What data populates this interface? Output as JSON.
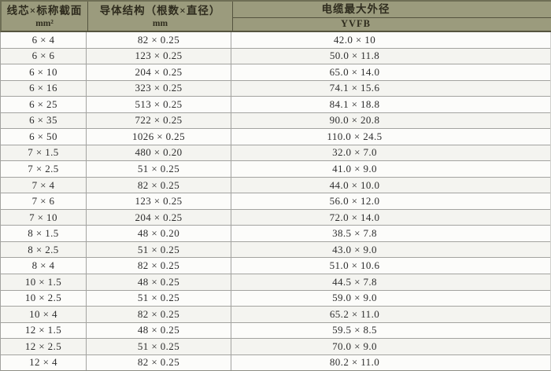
{
  "colors": {
    "header_bg": "#9b9b7d",
    "header_edge": "#6e6e55",
    "header_line": "#55543f",
    "header_text": "#2f2c1e",
    "body_bg": "#f9f9f6",
    "grid_line": "#a3a3a0",
    "cell_text": "#2d2d2d"
  },
  "table": {
    "header": {
      "col1": {
        "title": "线芯×标称截面",
        "unit": "mm²"
      },
      "col2": {
        "title": "导体结构（根数×直径）",
        "unit": "mm"
      },
      "col3": {
        "title": "电缆最大外径",
        "subtitle": "YVFB"
      }
    },
    "rows": [
      {
        "cores": "6 × 4",
        "conductor": "82 × 0.25",
        "od": "42.0 × 10"
      },
      {
        "cores": "6 × 6",
        "conductor": "123 × 0.25",
        "od": "50.0 × 11.8"
      },
      {
        "cores": "6 × 10",
        "conductor": "204 × 0.25",
        "od": "65.0 × 14.0"
      },
      {
        "cores": "6 × 16",
        "conductor": "323 × 0.25",
        "od": "74.1 × 15.6"
      },
      {
        "cores": "6 × 25",
        "conductor": "513 × 0.25",
        "od": "84.1 × 18.8"
      },
      {
        "cores": "6 × 35",
        "conductor": "722 × 0.25",
        "od": "90.0 × 20.8"
      },
      {
        "cores": "6 × 50",
        "conductor": "1026 × 0.25",
        "od": "110.0 × 24.5"
      },
      {
        "cores": "7 × 1.5",
        "conductor": "480 × 0.20",
        "od": "32.0 × 7.0"
      },
      {
        "cores": "7 × 2.5",
        "conductor": "51 × 0.25",
        "od": "41.0 × 9.0"
      },
      {
        "cores": "7 × 4",
        "conductor": "82 × 0.25",
        "od": "44.0 × 10.0"
      },
      {
        "cores": "7 × 6",
        "conductor": "123 × 0.25",
        "od": "56.0 × 12.0"
      },
      {
        "cores": "7 × 10",
        "conductor": "204 × 0.25",
        "od": "72.0 × 14.0"
      },
      {
        "cores": "8 × 1.5",
        "conductor": "48 × 0.20",
        "od": "38.5 × 7.8"
      },
      {
        "cores": "8 × 2.5",
        "conductor": "51 × 0.25",
        "od": "43.0 × 9.0"
      },
      {
        "cores": "8 × 4",
        "conductor": "82 × 0.25",
        "od": "51.0 × 10.6"
      },
      {
        "cores": "10 × 1.5",
        "conductor": "48 × 0.25",
        "od": "44.5 × 7.8"
      },
      {
        "cores": "10 × 2.5",
        "conductor": "51 × 0.25",
        "od": "59.0 × 9.0"
      },
      {
        "cores": "10 × 4",
        "conductor": "82 × 0.25",
        "od": "65.2 × 11.0"
      },
      {
        "cores": "12 × 1.5",
        "conductor": "48 × 0.25",
        "od": "59.5 × 8.5"
      },
      {
        "cores": "12 × 2.5",
        "conductor": "51 × 0.25",
        "od": "70.0 × 9.0"
      },
      {
        "cores": "12 × 4",
        "conductor": "82 × 0.25",
        "od": "80.2 × 11.0"
      }
    ]
  }
}
